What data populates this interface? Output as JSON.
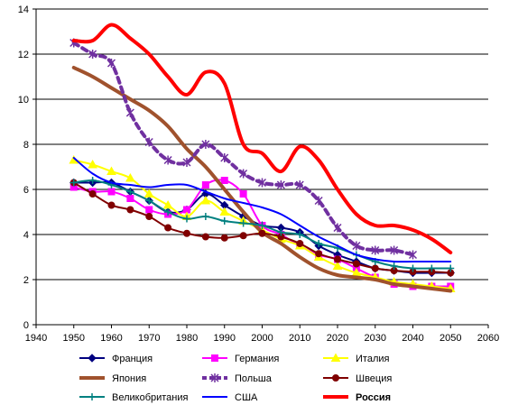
{
  "chart_data": {
    "type": "line",
    "xlim": [
      1940,
      2060
    ],
    "ylim": [
      0,
      14
    ],
    "x_ticks": [
      "1940",
      "1950",
      "1960",
      "1970",
      "1980",
      "1990",
      "2000",
      "2010",
      "2020",
      "2030",
      "2040",
      "2050",
      "2060"
    ],
    "y_ticks": [
      "0",
      "2",
      "4",
      "6",
      "8",
      "10",
      "12",
      "14"
    ],
    "grid": "horizontal",
    "legend_position": "bottom",
    "series": [
      {
        "name": "Франция",
        "color": "#000080",
        "marker": "diamond",
        "lineWidth": 2,
        "x": [
          1950,
          1955,
          1960,
          1965,
          1970,
          1975,
          1980,
          1985,
          1990,
          1995,
          2000,
          2005,
          2010,
          2015,
          2020,
          2025,
          2030,
          2035,
          2040,
          2045,
          2050
        ],
        "y": [
          6.3,
          6.3,
          6.3,
          5.9,
          5.5,
          5.0,
          5.1,
          5.8,
          5.3,
          4.8,
          4.4,
          4.3,
          4.1,
          3.5,
          3.1,
          2.8,
          2.5,
          2.4,
          2.3,
          2.3,
          2.3
        ]
      },
      {
        "name": "Германия",
        "color": "#ff00ff",
        "marker": "square",
        "lineWidth": 2,
        "x": [
          1950,
          1955,
          1960,
          1965,
          1970,
          1975,
          1980,
          1985,
          1990,
          1995,
          2000,
          2005,
          2010,
          2015,
          2020,
          2025,
          2030,
          2035,
          2040,
          2045,
          2050
        ],
        "y": [
          6.1,
          5.9,
          5.9,
          5.6,
          5.1,
          4.9,
          5.1,
          6.2,
          6.4,
          5.8,
          4.4,
          4.0,
          3.5,
          3.1,
          2.9,
          2.5,
          2.1,
          1.8,
          1.7,
          1.7,
          1.7
        ]
      },
      {
        "name": "Италия",
        "color": "#ffff00",
        "marker": "triangle",
        "lineWidth": 2,
        "x": [
          1950,
          1955,
          1960,
          1965,
          1970,
          1975,
          1980,
          1985,
          1990,
          1995,
          2000,
          2005,
          2010,
          2015,
          2020,
          2025,
          2030,
          2035,
          2040,
          2045,
          2050
        ],
        "y": [
          7.3,
          7.1,
          6.8,
          6.5,
          5.8,
          5.3,
          4.8,
          5.5,
          5.0,
          4.6,
          4.2,
          3.8,
          3.5,
          3.0,
          2.6,
          2.3,
          2.1,
          1.9,
          1.8,
          1.7,
          1.6
        ]
      },
      {
        "name": "Япония",
        "color": "#a0522d",
        "marker": "none",
        "lineWidth": 4,
        "x": [
          1950,
          1955,
          1960,
          1965,
          1970,
          1975,
          1980,
          1985,
          1990,
          1995,
          2000,
          2005,
          2010,
          2015,
          2020,
          2025,
          2030,
          2035,
          2040,
          2045,
          2050
        ],
        "y": [
          11.4,
          11.0,
          10.5,
          10.0,
          9.5,
          8.8,
          7.8,
          7.0,
          6.0,
          5.0,
          4.1,
          3.6,
          3.0,
          2.5,
          2.2,
          2.1,
          2.0,
          1.8,
          1.7,
          1.6,
          1.5
        ]
      },
      {
        "name": "Польша",
        "color": "#7030a0",
        "marker": "asterisk",
        "lineWidth": 4,
        "dash": "6,5",
        "x": [
          1950,
          1955,
          1960,
          1965,
          1970,
          1975,
          1980,
          1985,
          1990,
          1995,
          2000,
          2005,
          2010,
          2015,
          2020,
          2025,
          2030,
          2035,
          2040
        ],
        "y": [
          12.5,
          12.0,
          11.6,
          9.4,
          8.1,
          7.3,
          7.2,
          8.0,
          7.4,
          6.7,
          6.3,
          6.2,
          6.2,
          5.5,
          4.3,
          3.5,
          3.3,
          3.3,
          3.1
        ]
      },
      {
        "name": "Швеция",
        "color": "#800000",
        "marker": "circle",
        "lineWidth": 2,
        "x": [
          1950,
          1955,
          1960,
          1965,
          1970,
          1975,
          1980,
          1985,
          1990,
          1995,
          2000,
          2005,
          2010,
          2015,
          2020,
          2025,
          2030,
          2035,
          2040,
          2045,
          2050
        ],
        "y": [
          6.3,
          5.8,
          5.3,
          5.1,
          4.8,
          4.3,
          4.05,
          3.9,
          3.85,
          3.95,
          4.05,
          3.9,
          3.6,
          3.15,
          2.9,
          2.7,
          2.5,
          2.4,
          2.35,
          2.35,
          2.3
        ]
      },
      {
        "name": "Великобритания",
        "color": "#008080",
        "marker": "plus",
        "lineWidth": 2,
        "x": [
          1950,
          1955,
          1960,
          1965,
          1970,
          1975,
          1980,
          1985,
          1990,
          1995,
          2000,
          2005,
          2010,
          2015,
          2020,
          2025,
          2030,
          2035,
          2040,
          2045,
          2050
        ],
        "y": [
          6.3,
          6.4,
          6.2,
          5.9,
          5.5,
          5.0,
          4.7,
          4.8,
          4.6,
          4.5,
          4.4,
          4.1,
          4.0,
          3.6,
          3.4,
          3.1,
          2.8,
          2.6,
          2.5,
          2.5,
          2.5
        ]
      },
      {
        "name": "США",
        "color": "#0000ff",
        "marker": "none",
        "lineWidth": 2,
        "x": [
          1950,
          1955,
          1960,
          1965,
          1970,
          1975,
          1980,
          1985,
          1990,
          1995,
          2000,
          2005,
          2010,
          2015,
          2020,
          2025,
          2030,
          2035,
          2040,
          2045,
          2050
        ],
        "y": [
          7.4,
          6.7,
          6.3,
          6.2,
          6.1,
          6.2,
          6.2,
          5.9,
          5.6,
          5.4,
          5.2,
          4.9,
          4.4,
          3.9,
          3.5,
          3.1,
          2.9,
          2.8,
          2.8,
          2.8,
          2.8
        ]
      },
      {
        "name": "Россия",
        "color": "#ff0000",
        "marker": "none",
        "lineWidth": 4,
        "boldLabel": true,
        "x": [
          1950,
          1955,
          1960,
          1965,
          1970,
          1975,
          1980,
          1985,
          1990,
          1995,
          2000,
          2005,
          2010,
          2015,
          2020,
          2025,
          2030,
          2035,
          2040,
          2045,
          2050
        ],
        "y": [
          12.6,
          12.6,
          13.3,
          12.7,
          12.0,
          11.0,
          10.2,
          11.2,
          10.7,
          8.0,
          7.6,
          6.8,
          7.9,
          7.3,
          6.0,
          4.9,
          4.4,
          4.4,
          4.2,
          3.8,
          3.2
        ]
      }
    ]
  }
}
